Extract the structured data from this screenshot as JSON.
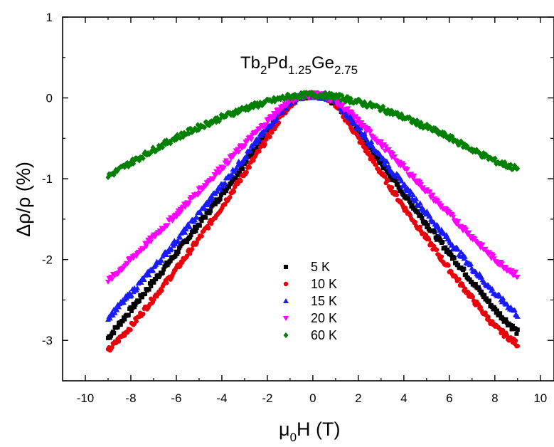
{
  "chart_data": {
    "type": "scatter",
    "title": {
      "base1": "Tb",
      "sub1": "2",
      "base2": "Pd",
      "sub2": "1.25",
      "base3": "Ge",
      "sub3": "2.75"
    },
    "xlabel": {
      "base": "μ",
      "sub": "0",
      "rest": "H (T)"
    },
    "ylabel": "Δρ/ρ (%)",
    "xlim": [
      -11,
      10.6
    ],
    "ylim": [
      -3.5,
      1
    ],
    "xticks": [
      -10,
      -8,
      -6,
      -4,
      -2,
      0,
      2,
      4,
      6,
      8,
      10
    ],
    "yticks": [
      -3,
      -2,
      -1,
      0,
      1
    ],
    "xtick_labels": [
      "-10",
      "-8",
      "-6",
      "-4",
      "-2",
      "0",
      "2",
      "4",
      "6",
      "8",
      "10"
    ],
    "ytick_labels": [
      "-3",
      "-2",
      "-1",
      "0",
      "1"
    ],
    "legend_position": "bottom-center",
    "grid": false,
    "series": [
      {
        "name": "5 K",
        "color": "#000000",
        "marker": "square",
        "x": [
          -9,
          -8,
          -7,
          -6,
          -5,
          -4,
          -3,
          -2,
          -1.5,
          -1,
          -0.5,
          0,
          0.5,
          1,
          1.5,
          2,
          3,
          4,
          5,
          6,
          7,
          8,
          9
        ],
        "y": [
          -2.97,
          -2.62,
          -2.27,
          -1.92,
          -1.56,
          -1.19,
          -0.81,
          -0.42,
          -0.22,
          -0.06,
          0.02,
          0.04,
          0.02,
          -0.06,
          -0.22,
          -0.42,
          -0.81,
          -1.19,
          -1.56,
          -1.92,
          -2.27,
          -2.62,
          -2.9
        ]
      },
      {
        "name": "10 K",
        "color": "#e8000b",
        "marker": "circle",
        "x": [
          -9,
          -8,
          -7,
          -6,
          -5,
          -4,
          -3,
          -2,
          -1.5,
          -1,
          -0.5,
          0,
          0.5,
          1,
          1.5,
          2,
          3,
          4,
          5,
          6,
          7,
          8,
          9
        ],
        "y": [
          -3.13,
          -2.83,
          -2.48,
          -2.12,
          -1.74,
          -1.35,
          -0.93,
          -0.5,
          -0.28,
          -0.08,
          0.02,
          0.04,
          0.02,
          -0.08,
          -0.28,
          -0.5,
          -0.93,
          -1.35,
          -1.74,
          -2.12,
          -2.48,
          -2.83,
          -3.05
        ]
      },
      {
        "name": "15 K",
        "color": "#1a1aff",
        "marker": "triangle-up",
        "x": [
          -9,
          -8,
          -7,
          -6,
          -5,
          -4,
          -3,
          -2,
          -1.5,
          -1,
          -0.5,
          0,
          0.5,
          1,
          1.5,
          2,
          3,
          4,
          5,
          6,
          7,
          8,
          9
        ],
        "y": [
          -2.72,
          -2.42,
          -2.1,
          -1.77,
          -1.43,
          -1.08,
          -0.73,
          -0.37,
          -0.2,
          -0.05,
          0.02,
          0.03,
          0.02,
          -0.05,
          -0.2,
          -0.37,
          -0.73,
          -1.08,
          -1.43,
          -1.77,
          -2.1,
          -2.42,
          -2.68
        ]
      },
      {
        "name": "20 K",
        "color": "#ff00ff",
        "marker": "triangle-down",
        "x": [
          -9,
          -8,
          -7,
          -6,
          -5,
          -4,
          -3,
          -2,
          -1.5,
          -1,
          -0.5,
          0,
          0.5,
          1,
          1.5,
          2,
          3,
          4,
          5,
          6,
          7,
          8,
          9
        ],
        "y": [
          -2.27,
          -2.0,
          -1.72,
          -1.44,
          -1.15,
          -0.86,
          -0.57,
          -0.29,
          -0.15,
          -0.03,
          0.03,
          0.04,
          0.03,
          -0.03,
          -0.15,
          -0.29,
          -0.57,
          -0.86,
          -1.15,
          -1.44,
          -1.72,
          -2.0,
          -2.2
        ]
      },
      {
        "name": "60 K",
        "color": "#008000",
        "marker": "diamond",
        "x": [
          -9,
          -8,
          -7,
          -6,
          -5,
          -4,
          -3,
          -2,
          -1,
          0,
          1,
          2,
          3,
          4,
          5,
          6,
          7,
          8,
          9
        ],
        "y": [
          -0.97,
          -0.8,
          -0.64,
          -0.49,
          -0.36,
          -0.24,
          -0.13,
          -0.05,
          0.02,
          0.04,
          0.02,
          -0.05,
          -0.13,
          -0.24,
          -0.36,
          -0.49,
          -0.64,
          -0.78,
          -0.88
        ]
      }
    ]
  }
}
